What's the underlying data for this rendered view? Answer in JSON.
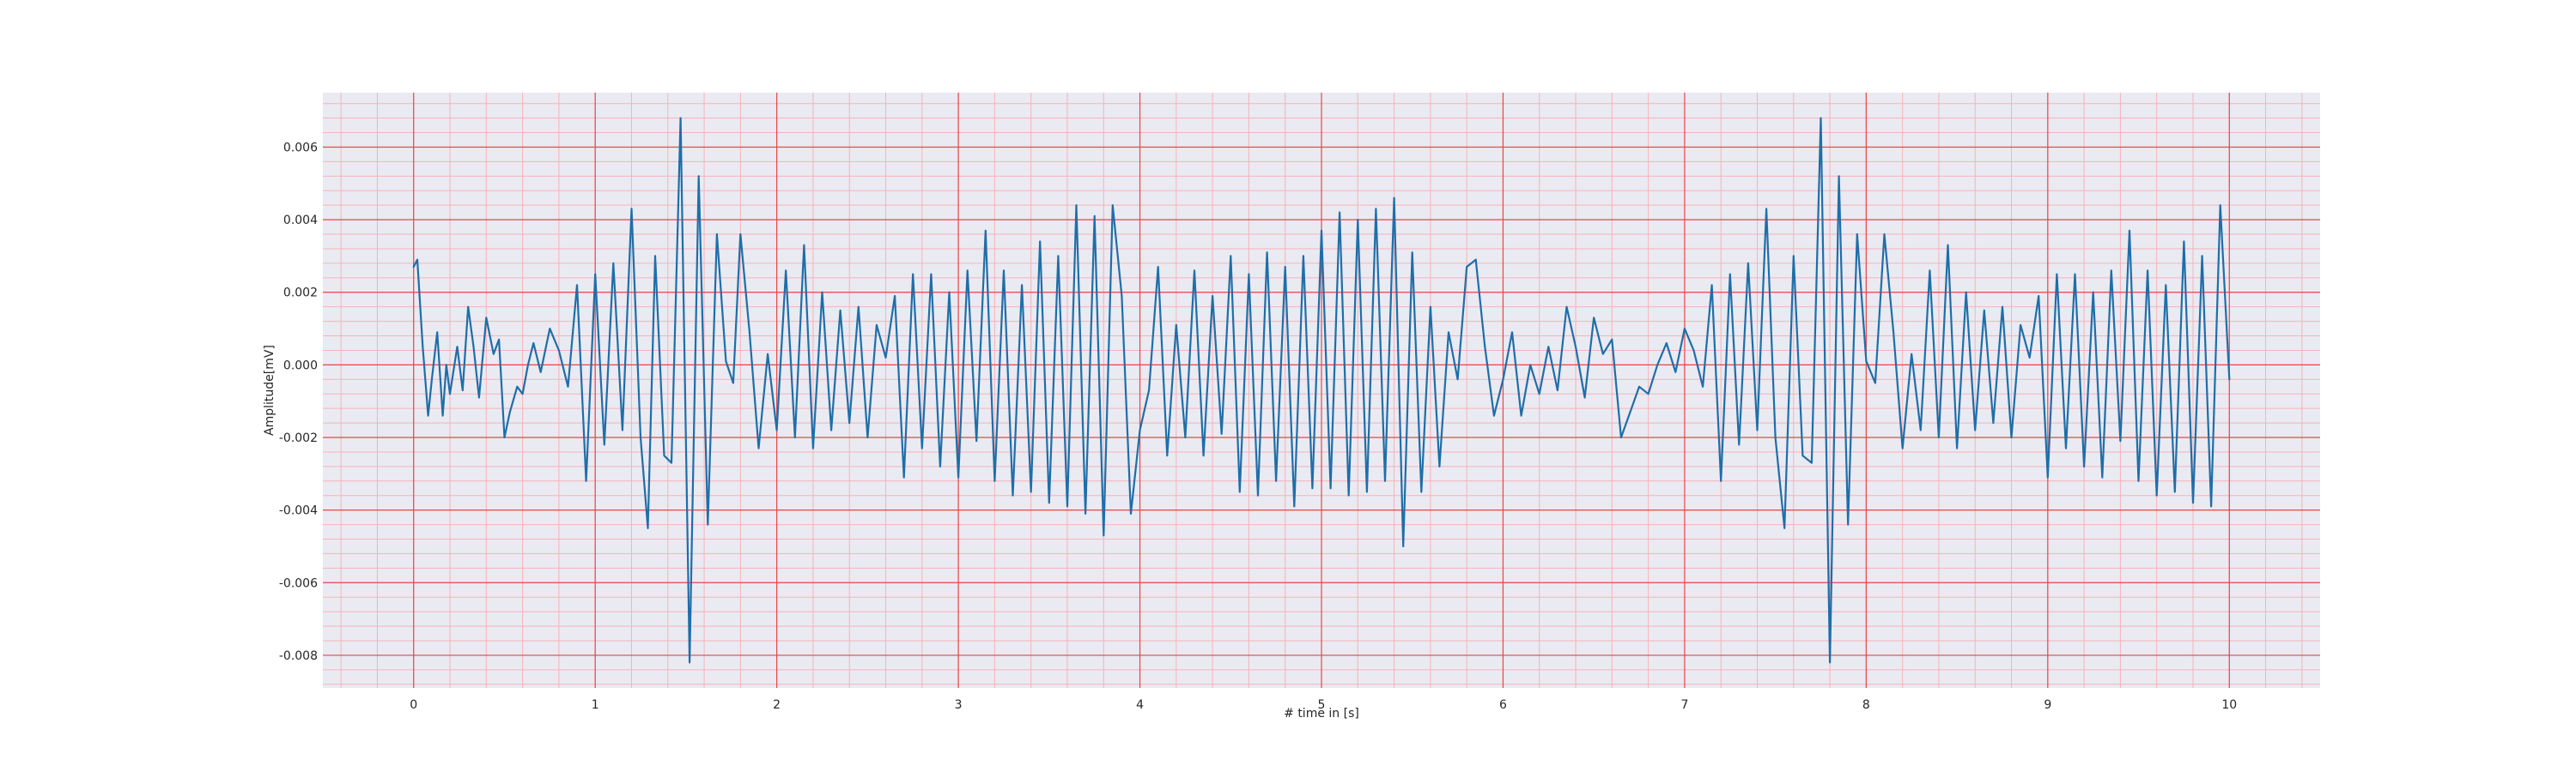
{
  "chart_data": {
    "type": "line",
    "title": "",
    "xlabel": "# time in [s]",
    "ylabel": "Amplitude[mV]",
    "xlim": [
      -0.5,
      10.5
    ],
    "ylim": [
      -0.0089,
      0.0075
    ],
    "xticks": [
      0,
      1,
      2,
      3,
      4,
      5,
      6,
      7,
      8,
      9,
      10
    ],
    "yticks": [
      -0.008,
      -0.006,
      -0.004,
      -0.002,
      0.0,
      0.002,
      0.004,
      0.006
    ],
    "xtick_labels": [
      "0",
      "1",
      "2",
      "3",
      "4",
      "5",
      "6",
      "7",
      "8",
      "9",
      "10"
    ],
    "ytick_labels": [
      "-0.008",
      "-0.006",
      "-0.004",
      "-0.002",
      "0.000",
      "0.002",
      "0.004",
      "0.006"
    ],
    "grid": true,
    "grid_minor": true,
    "colors": {
      "background": "#eaeaf2",
      "major_grid": "#e8474a",
      "minor_grid": "#f5b3b8",
      "line": "#1f6ea8"
    },
    "series": [
      {
        "x": [
          0.0,
          0.02,
          0.05,
          0.08,
          0.1,
          0.13,
          0.16,
          0.18,
          0.2,
          0.24,
          0.27,
          0.3,
          0.33,
          0.36,
          0.4,
          0.44,
          0.47,
          0.5,
          0.53,
          0.57,
          0.6,
          0.63,
          0.66,
          0.7,
          0.75,
          0.8,
          0.85,
          0.9,
          0.95,
          1.0,
          1.05,
          1.1,
          1.15,
          1.2,
          1.25,
          1.29,
          1.33,
          1.38,
          1.42,
          1.47,
          1.52,
          1.57,
          1.62,
          1.67,
          1.72,
          1.76,
          1.8,
          1.85,
          1.9,
          1.95,
          2.0,
          2.05,
          2.1,
          2.15,
          2.2,
          2.25,
          2.3,
          2.35,
          2.4,
          2.45,
          2.5,
          2.55,
          2.6,
          2.65,
          2.7,
          2.75,
          2.8,
          2.85,
          2.9,
          2.95,
          3.0,
          3.05,
          3.1,
          3.15,
          3.2,
          3.25,
          3.3,
          3.35,
          3.4,
          3.45,
          3.5,
          3.55,
          3.6,
          3.65,
          3.7,
          3.75,
          3.8,
          3.85,
          3.9,
          3.95,
          4.0,
          4.05,
          4.1,
          4.15,
          4.2,
          4.25,
          4.3,
          4.35,
          4.4,
          4.45,
          4.5,
          4.55,
          4.6,
          4.65,
          4.7,
          4.75,
          4.8,
          4.85,
          4.9,
          4.95,
          5.0,
          5.05,
          5.1,
          5.15,
          5.2,
          5.25,
          5.3,
          5.35,
          5.4,
          5.45,
          5.5,
          5.55,
          5.6,
          5.65,
          5.7,
          5.75,
          5.8,
          5.85,
          5.9,
          5.95,
          6.0,
          6.05,
          6.1,
          6.15,
          6.2,
          6.25,
          6.3,
          6.35,
          6.4,
          6.45,
          6.5,
          6.55,
          6.6,
          6.65,
          6.7,
          6.75,
          6.8,
          6.85,
          6.9,
          6.95,
          7.0,
          7.05,
          7.1,
          7.15,
          7.2,
          7.25,
          7.3,
          7.35,
          7.4,
          7.45,
          7.5,
          7.55,
          7.6,
          7.65,
          7.7,
          7.75,
          7.8,
          7.85,
          7.9,
          7.95,
          8.0,
          8.05,
          8.1,
          8.15,
          8.2,
          8.25,
          8.3,
          8.35,
          8.4,
          8.45,
          8.5,
          8.55,
          8.6,
          8.65,
          8.7,
          8.75,
          8.8,
          8.85,
          8.9,
          8.95,
          9.0,
          9.05,
          9.1,
          9.15,
          9.2,
          9.25,
          9.3,
          9.35,
          9.4,
          9.45,
          9.5,
          9.55,
          9.6,
          9.65,
          9.7,
          9.75,
          9.8,
          9.85,
          9.9,
          9.95,
          10.0
        ],
        "values": [
          0.0027,
          0.0029,
          0.0005,
          -0.0014,
          -0.0004,
          0.0009,
          -0.0014,
          0.0,
          -0.0008,
          0.0005,
          -0.0007,
          0.0016,
          0.0005,
          -0.0009,
          0.0013,
          0.0003,
          0.0007,
          -0.002,
          -0.0013,
          -0.0006,
          -0.0008,
          0.0,
          0.0006,
          -0.0002,
          0.001,
          0.0004,
          -0.0006,
          0.0022,
          -0.0032,
          0.0025,
          -0.0022,
          0.0028,
          -0.0018,
          0.0043,
          -0.002,
          -0.0045,
          0.003,
          -0.0025,
          -0.0027,
          0.0068,
          -0.0082,
          0.0052,
          -0.0044,
          0.0036,
          0.0001,
          -0.0005,
          0.0036,
          0.0009,
          -0.0023,
          0.0003,
          -0.0018,
          0.0026,
          -0.002,
          0.0033,
          -0.0023,
          0.002,
          -0.0018,
          0.0015,
          -0.0016,
          0.0016,
          -0.002,
          0.0011,
          0.0002,
          0.0019,
          -0.0031,
          0.0025,
          -0.0023,
          0.0025,
          -0.0028,
          0.002,
          -0.0031,
          0.0026,
          -0.0021,
          0.0037,
          -0.0032,
          0.0026,
          -0.0036,
          0.0022,
          -0.0035,
          0.0034,
          -0.0038,
          0.003,
          -0.0039,
          0.0044,
          -0.0041,
          0.0041,
          -0.0047,
          0.0044,
          0.0019,
          -0.0041,
          -0.0018,
          -0.0007,
          0.0027,
          -0.0025,
          0.0011,
          -0.002,
          0.0026,
          -0.0025,
          0.0019,
          -0.0019,
          0.003,
          -0.0035,
          0.0025,
          -0.0036,
          0.0031,
          -0.0032,
          0.0027,
          -0.0039,
          0.003,
          -0.0034,
          0.0037,
          -0.0034,
          0.0042,
          -0.0036,
          0.004,
          -0.0035,
          0.0043,
          -0.0032,
          0.0046,
          -0.005,
          0.0031,
          -0.0035,
          0.0016,
          -0.0028,
          0.0009,
          -0.0004,
          0.0027,
          0.0029,
          0.0005,
          -0.0014,
          -0.0004,
          0.0009,
          -0.0014,
          0.0,
          -0.0008,
          0.0005,
          -0.0007,
          0.0016,
          0.0005,
          -0.0009,
          0.0013,
          0.0003,
          0.0007,
          -0.002,
          -0.0013,
          -0.0006,
          -0.0008,
          0.0,
          0.0006,
          -0.0002,
          0.001,
          0.0004,
          -0.0006,
          0.0022,
          -0.0032,
          0.0025,
          -0.0022,
          0.0028,
          -0.0018,
          0.0043,
          -0.002,
          -0.0045,
          0.003,
          -0.0025,
          -0.0027,
          0.0068,
          -0.0082,
          0.0052,
          -0.0044,
          0.0036,
          0.0001,
          -0.0005,
          0.0036,
          0.0009,
          -0.0023,
          0.0003,
          -0.0018,
          0.0026,
          -0.002,
          0.0033,
          -0.0023,
          0.002,
          -0.0018,
          0.0015,
          -0.0016,
          0.0016,
          -0.002,
          0.0011,
          0.0002,
          0.0019,
          -0.0031,
          0.0025,
          -0.0023,
          0.0025,
          -0.0028,
          0.002,
          -0.0031,
          0.0026,
          -0.0021,
          0.0037,
          -0.0032,
          0.0026,
          -0.0036,
          0.0022,
          -0.0035,
          0.0034,
          -0.0038,
          0.003,
          -0.0039,
          0.0044,
          -0.0004
        ]
      }
    ]
  }
}
